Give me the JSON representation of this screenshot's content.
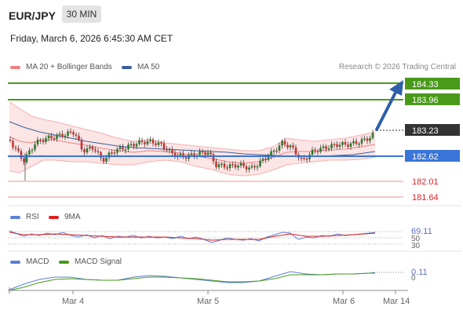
{
  "header": {
    "symbol": "EUR/JPY",
    "timeframe": "30 MIN",
    "datetime": "Friday, March 6, 2026 6:45:30 AM CET",
    "credit": "Research © 2026 Trading Central"
  },
  "legend_main": [
    {
      "label": "MA 20 + Bollinger Bands",
      "color": "#f08080"
    },
    {
      "label": "MA 50",
      "color": "#3a5f9c"
    }
  ],
  "legend_rsi": [
    {
      "label": "RSI",
      "color": "#5b7fd6"
    },
    {
      "label": "9MA",
      "color": "#e02020"
    }
  ],
  "legend_macd": [
    {
      "label": "MACD",
      "color": "#5b7fd6"
    },
    {
      "label": "MACD Signal",
      "color": "#4a9a1a"
    }
  ],
  "price_levels": [
    {
      "value": "184.33",
      "style": "green-box"
    },
    {
      "value": "183.96",
      "style": "green-box"
    },
    {
      "value": "183.23",
      "style": "dark-box"
    },
    {
      "value": "182.62",
      "style": "blue-box"
    },
    {
      "value": "182.01",
      "style": "red-text"
    },
    {
      "value": "181.64",
      "style": "red-text"
    }
  ],
  "rsi_labels": [
    "69.11",
    "50",
    "30"
  ],
  "macd_label": "0.11",
  "x_axis": [
    "Mar 4",
    "Mar 5",
    "Mar 6",
    "Mar 14"
  ],
  "colors": {
    "green": "#4a9a1a",
    "blue": "#3b74d8",
    "dark": "#333333",
    "red": "#e02020",
    "band_fill": "#fbdada",
    "up_candle": "#2a7a2a",
    "down_candle": "#c83232"
  }
}
